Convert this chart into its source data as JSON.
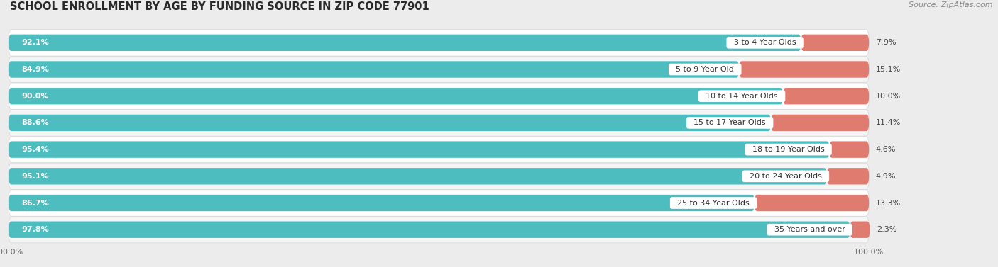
{
  "title": "SCHOOL ENROLLMENT BY AGE BY FUNDING SOURCE IN ZIP CODE 77901",
  "source": "Source: ZipAtlas.com",
  "categories": [
    "3 to 4 Year Olds",
    "5 to 9 Year Old",
    "10 to 14 Year Olds",
    "15 to 17 Year Olds",
    "18 to 19 Year Olds",
    "20 to 24 Year Olds",
    "25 to 34 Year Olds",
    "35 Years and over"
  ],
  "public_values": [
    92.1,
    84.9,
    90.0,
    88.6,
    95.4,
    95.1,
    86.7,
    97.8
  ],
  "private_values": [
    7.9,
    15.1,
    10.0,
    11.4,
    4.6,
    4.9,
    13.3,
    2.3
  ],
  "public_color": "#4DBDC0",
  "private_color": "#E07B70",
  "bg_color": "#ececec",
  "row_bg_even": "#f5f5f5",
  "row_bg_odd": "#ffffff",
  "title_fontsize": 10.5,
  "bar_label_fontsize": 8.0,
  "cat_label_fontsize": 8.0,
  "tick_fontsize": 8.0,
  "legend_fontsize": 9,
  "source_fontsize": 8
}
